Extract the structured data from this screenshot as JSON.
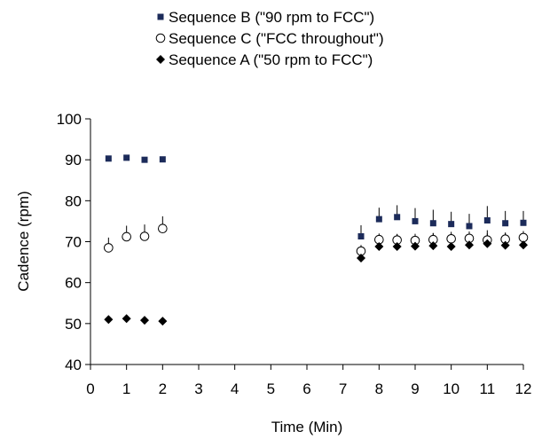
{
  "chart_data": {
    "type": "scatter",
    "xlabel": "Time (Min)",
    "ylabel": "Cadence (rpm)",
    "xlim": [
      0,
      12
    ],
    "ylim": [
      40,
      100
    ],
    "xticks": [
      "0",
      "1",
      "2",
      "3",
      "4",
      "5",
      "6",
      "7",
      "8",
      "9",
      "10",
      "11",
      "12"
    ],
    "yticks": [
      "40",
      "50",
      "60",
      "70",
      "80",
      "90",
      "100"
    ],
    "grid": false,
    "legend_position": "top-center",
    "series": [
      {
        "name": "Sequence B (\"90 rpm to FCC\")",
        "marker": "square",
        "color": "#1c2b5a",
        "points": [
          {
            "x": 0.5,
            "y": 90.3,
            "err": 0.4
          },
          {
            "x": 1.0,
            "y": 90.5,
            "err": 0.4
          },
          {
            "x": 1.5,
            "y": 90.0,
            "err": 0.4
          },
          {
            "x": 2.0,
            "y": 90.1,
            "err": 0.4
          },
          {
            "x": 7.5,
            "y": 71.3,
            "err": 2.7
          },
          {
            "x": 8.0,
            "y": 75.5,
            "err": 2.8
          },
          {
            "x": 8.5,
            "y": 76.0,
            "err": 2.9
          },
          {
            "x": 9.0,
            "y": 75.0,
            "err": 3.2
          },
          {
            "x": 9.5,
            "y": 74.5,
            "err": 3.3
          },
          {
            "x": 10.0,
            "y": 74.3,
            "err": 3.0
          },
          {
            "x": 10.5,
            "y": 73.8,
            "err": 3.0
          },
          {
            "x": 11.0,
            "y": 75.2,
            "err": 3.5
          },
          {
            "x": 11.5,
            "y": 74.5,
            "err": 3.0
          },
          {
            "x": 12.0,
            "y": 74.6,
            "err": 2.9
          }
        ]
      },
      {
        "name": "Sequence C (\"FCC throughout\")",
        "marker": "circle",
        "color": "#000000",
        "points": [
          {
            "x": 0.5,
            "y": 68.5,
            "err": 2.5
          },
          {
            "x": 1.0,
            "y": 71.2,
            "err": 2.7
          },
          {
            "x": 1.5,
            "y": 71.3,
            "err": 2.9
          },
          {
            "x": 2.0,
            "y": 73.2,
            "err": 3.0
          },
          {
            "x": 7.5,
            "y": 67.7,
            "err": 1.5
          },
          {
            "x": 8.0,
            "y": 70.5,
            "err": 1.5
          },
          {
            "x": 8.5,
            "y": 70.4,
            "err": 1.5
          },
          {
            "x": 9.0,
            "y": 70.3,
            "err": 1.6
          },
          {
            "x": 9.5,
            "y": 70.5,
            "err": 1.6
          },
          {
            "x": 10.0,
            "y": 70.7,
            "err": 1.7
          },
          {
            "x": 10.5,
            "y": 70.8,
            "err": 1.7
          },
          {
            "x": 11.0,
            "y": 70.4,
            "err": 1.6
          },
          {
            "x": 11.5,
            "y": 70.6,
            "err": 1.6
          },
          {
            "x": 12.0,
            "y": 71.0,
            "err": 1.6
          }
        ]
      },
      {
        "name": "Sequence A (\"50 rpm to FCC\")",
        "marker": "diamond",
        "color": "#000000",
        "points": [
          {
            "x": 0.5,
            "y": 51.0,
            "err": 0.3
          },
          {
            "x": 1.0,
            "y": 51.2,
            "err": 0.3
          },
          {
            "x": 1.5,
            "y": 50.8,
            "err": 0.3
          },
          {
            "x": 2.0,
            "y": 50.6,
            "err": 0.3
          },
          {
            "x": 7.5,
            "y": 66.0,
            "err": 2.6
          },
          {
            "x": 8.0,
            "y": 68.8,
            "err": 2.9
          },
          {
            "x": 8.5,
            "y": 68.8,
            "err": 3.0
          },
          {
            "x": 9.0,
            "y": 68.9,
            "err": 3.0
          },
          {
            "x": 9.5,
            "y": 69.0,
            "err": 3.1
          },
          {
            "x": 10.0,
            "y": 68.8,
            "err": 3.1
          },
          {
            "x": 10.5,
            "y": 69.2,
            "err": 3.2
          },
          {
            "x": 11.0,
            "y": 69.5,
            "err": 3.3
          },
          {
            "x": 11.5,
            "y": 69.1,
            "err": 3.1
          },
          {
            "x": 12.0,
            "y": 69.2,
            "err": 3.2
          }
        ]
      }
    ]
  }
}
